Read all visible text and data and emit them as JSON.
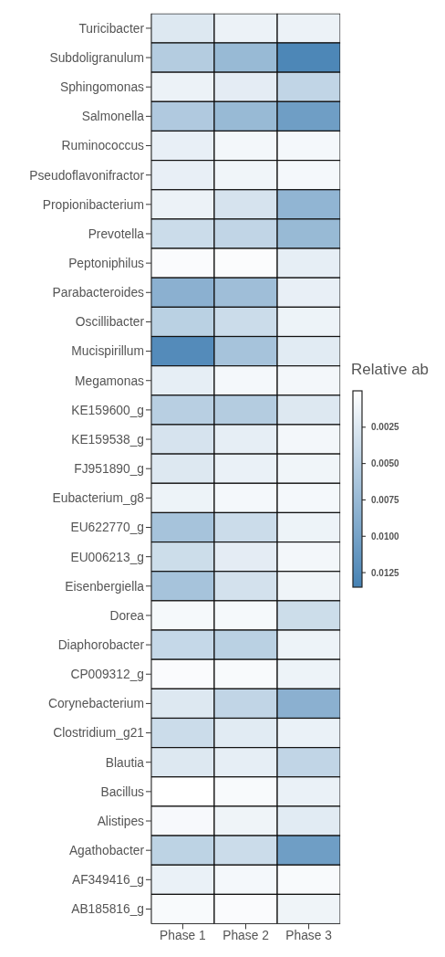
{
  "chart_data": {
    "type": "heatmap",
    "clabel": "Relative ab",
    "categories": [
      "Phase 1",
      "Phase 2",
      "Phase 3"
    ],
    "y_categories": [
      "Turicibacter",
      "Subdoligranulum",
      "Sphingomonas",
      "Salmonella",
      "Ruminococcus",
      "Pseudoflavonifractor",
      "Propionibacterium",
      "Prevotella",
      "Peptoniphilus",
      "Parabacteroides",
      "Oscillibacter",
      "Mucispirillum",
      "Megamonas",
      "KE159600_g",
      "KE159538_g",
      "FJ951890_g",
      "Eubacterium_g8",
      "EU622770_g",
      "EU006213_g",
      "Eisenbergiella",
      "Dorea",
      "Diaphorobacter",
      "CP009312_g",
      "Corynebacterium",
      "Clostridium_g21",
      "Blautia",
      "Bacillus",
      "Alistipes",
      "Agathobacter",
      "AF349416_g",
      "AB185816_g"
    ],
    "cells": [
      [
        0.0025,
        0.0014,
        0.0014
      ],
      [
        0.0055,
        0.0075,
        0.013
      ],
      [
        0.0014,
        0.002,
        0.0045
      ],
      [
        0.0058,
        0.0075,
        0.0105
      ],
      [
        0.0017,
        0.0009,
        0.0008
      ],
      [
        0.0017,
        0.0011,
        0.0008
      ],
      [
        0.0014,
        0.003,
        0.008
      ],
      [
        0.0038,
        0.0045,
        0.0075
      ],
      [
        0.0004,
        0.0003,
        0.0018
      ],
      [
        0.0085,
        0.007,
        0.0017
      ],
      [
        0.005,
        0.0038,
        0.0013
      ],
      [
        0.0125,
        0.0065,
        0.0022
      ],
      [
        0.0018,
        0.0008,
        0.0009
      ],
      [
        0.0052,
        0.0055,
        0.0025
      ],
      [
        0.003,
        0.0018,
        0.0009
      ],
      [
        0.0025,
        0.0015,
        0.0011
      ],
      [
        0.0013,
        0.0008,
        0.0008
      ],
      [
        0.0065,
        0.0038,
        0.0013
      ],
      [
        0.0037,
        0.002,
        0.0009
      ],
      [
        0.0065,
        0.0032,
        0.0012
      ],
      [
        0.0007,
        0.0007,
        0.0037
      ],
      [
        0.0042,
        0.005,
        0.0013
      ],
      [
        0.0004,
        0.0005,
        0.0013
      ],
      [
        0.0025,
        0.0045,
        0.0085
      ],
      [
        0.0038,
        0.0022,
        0.0015
      ],
      [
        0.0025,
        0.0018,
        0.0045
      ],
      [
        0.0,
        0.0005,
        0.0015
      ],
      [
        0.0006,
        0.0012,
        0.0022
      ],
      [
        0.0048,
        0.0038,
        0.0105
      ],
      [
        0.0015,
        0.0008,
        0.0005
      ],
      [
        0.0005,
        0.0004,
        0.0012
      ]
    ],
    "clim": [
      0,
      0.0135
    ],
    "cticks": [
      0.0025,
      {
        "value": 0.005,
        "label": "0.0050"
      },
      0.0075,
      {
        "value": 0.01,
        "label": "0.0100"
      },
      0.0125
    ]
  }
}
